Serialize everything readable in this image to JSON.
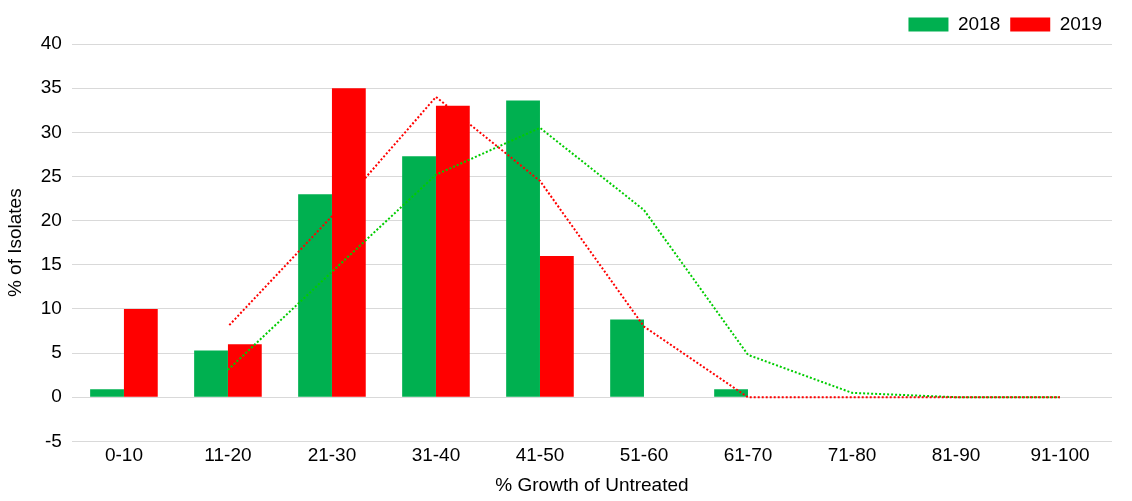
{
  "chart_data": {
    "type": "bar",
    "xlabel": "% Growth of Untreated",
    "ylabel": "% of Isolates",
    "categories": [
      "0-10",
      "11-20",
      "21-30",
      "31-40",
      "41-50",
      "51-60",
      "61-70",
      "71-80",
      "81-90",
      "91-100"
    ],
    "series": [
      {
        "name": "2018",
        "color": "#00b050",
        "values": [
          0.9,
          5.3,
          23,
          27.3,
          33.6,
          8.8,
          0.9,
          0,
          0,
          0
        ]
      },
      {
        "name": "2019",
        "color": "#ff0000",
        "values": [
          10,
          6,
          35,
          33,
          16,
          0,
          0,
          0,
          0,
          0
        ]
      },
      {
        "type": "line",
        "color": "#00cc00",
        "line_style": "dotted",
        "values": [
          null,
          3.1,
          14.2,
          25.2,
          30.5,
          21.2,
          4.8,
          0.5,
          0,
          0
        ]
      },
      {
        "type": "line",
        "color": "#ff0000",
        "line_style": "dotted",
        "values": [
          null,
          8,
          20.5,
          34,
          24.5,
          8,
          0,
          0,
          0,
          0
        ]
      }
    ],
    "ylim": [
      -5,
      40
    ],
    "yticks": [
      -5,
      0,
      5,
      10,
      15,
      20,
      25,
      30,
      35,
      40
    ],
    "grid": "y",
    "legend": "top right"
  }
}
